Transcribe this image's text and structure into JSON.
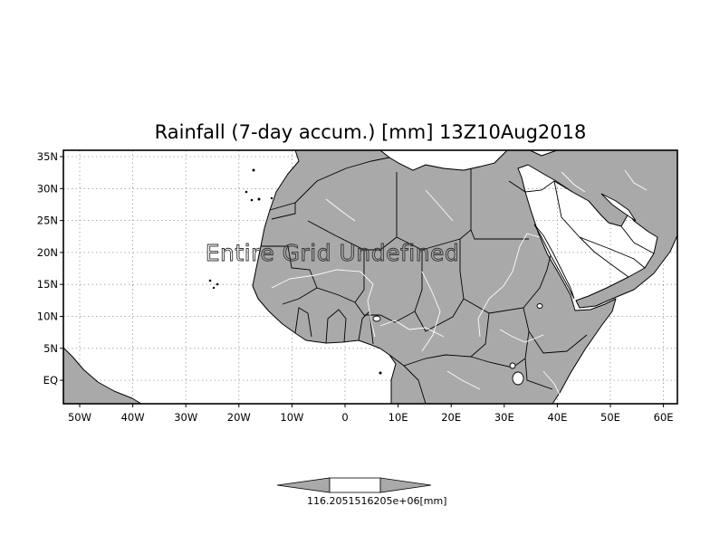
{
  "map": {
    "title": "Rainfall (7-day accum.) [mm] 13Z10Aug2018",
    "undefined_message": "Entire Grid Undefined",
    "colors": {
      "land": "#a9a9a9",
      "ocean": "#ffffff",
      "coastline": "#000000",
      "rivers": "#ffffff",
      "grid": "#9a9a9a"
    },
    "x_ticks": [
      "50W",
      "40W",
      "30W",
      "20W",
      "10W",
      "0",
      "10E",
      "20E",
      "30E",
      "40E",
      "50E",
      "60E"
    ],
    "y_ticks": [
      "35N",
      "30N",
      "25N",
      "20N",
      "15N",
      "10N",
      "5N",
      "EQ"
    ],
    "gridlines": true
  },
  "colorbar": {
    "label": "116.2051516205e+06[mm]",
    "style": "triangle-ended, no color fill"
  }
}
